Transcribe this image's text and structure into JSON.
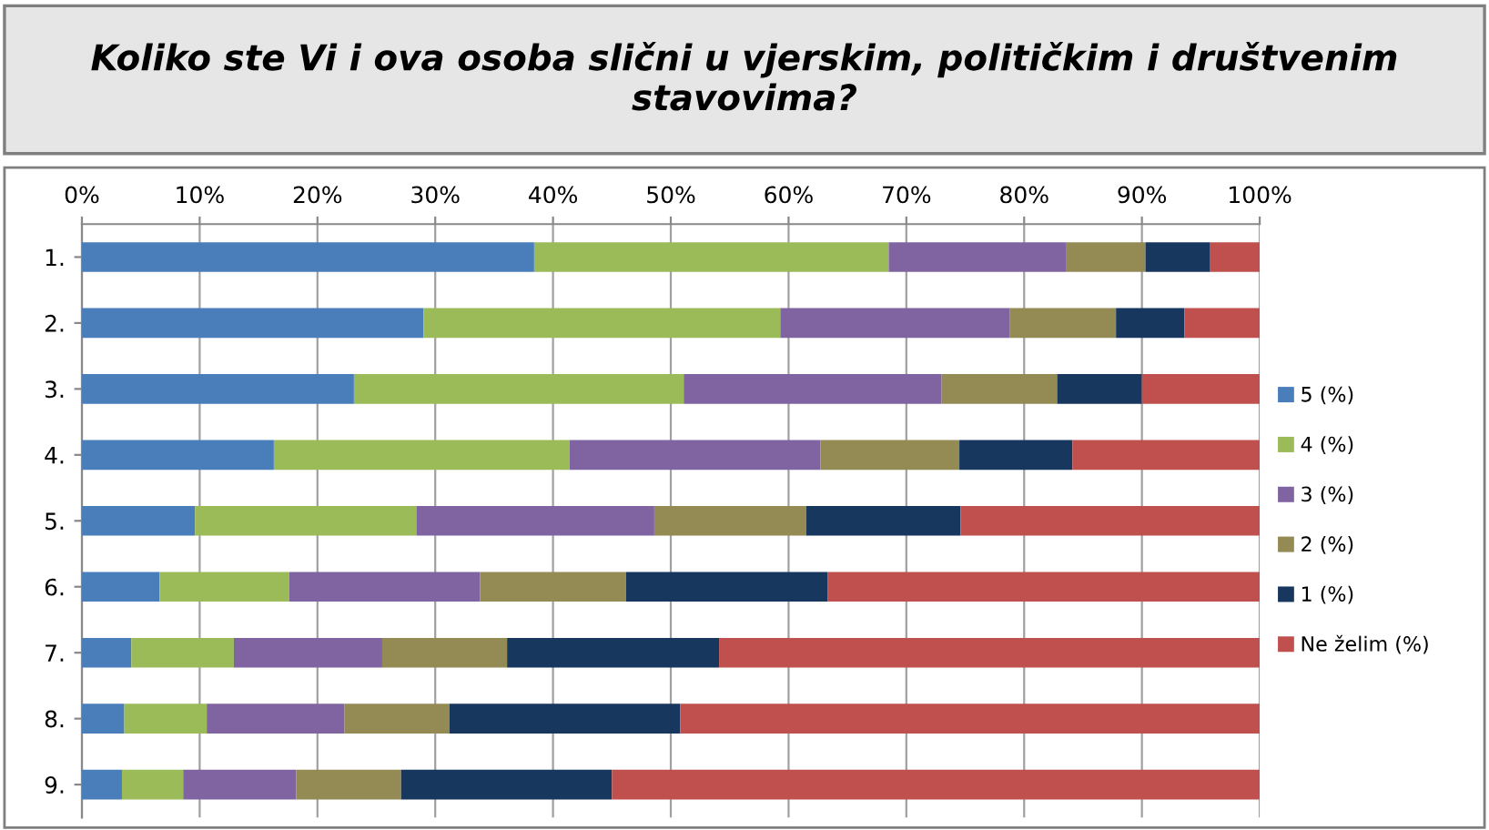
{
  "chart_data": {
    "type": "bar",
    "orientation": "horizontal",
    "stacked": true,
    "title": "Koliko ste Vi i ova osoba slični u vjerskim, političkim i društvenim stavovima?",
    "categories": [
      "1.",
      "2.",
      "3.",
      "4.",
      "5.",
      "6.",
      "7.",
      "8.",
      "9."
    ],
    "series": [
      {
        "name": "5 (%)",
        "color": "#4a7ebb",
        "values": [
          38.4,
          29.0,
          23.1,
          16.3,
          9.6,
          6.6,
          4.2,
          3.6,
          3.4
        ]
      },
      {
        "name": "4 (%)",
        "color": "#9bbb59",
        "values": [
          30.1,
          30.3,
          28.0,
          25.1,
          18.8,
          11.0,
          8.7,
          7.0,
          5.2
        ]
      },
      {
        "name": "3 (%)",
        "color": "#8064a2",
        "values": [
          15.1,
          19.5,
          21.9,
          21.3,
          20.2,
          16.2,
          12.6,
          11.7,
          9.6
        ]
      },
      {
        "name": "2 (%)",
        "color": "#948a54",
        "values": [
          6.7,
          9.0,
          9.8,
          11.8,
          12.9,
          12.4,
          10.6,
          8.9,
          8.9
        ]
      },
      {
        "name": "1 (%)",
        "color": "#17375e",
        "values": [
          5.5,
          5.8,
          7.2,
          9.6,
          13.1,
          17.1,
          18.0,
          19.6,
          17.9
        ]
      },
      {
        "name": "Ne želim (%)",
        "color": "#c0504d",
        "values": [
          4.2,
          6.4,
          10.0,
          15.9,
          25.4,
          36.7,
          45.9,
          49.2,
          55.0
        ]
      }
    ],
    "xlim": [
      0,
      100
    ],
    "xticks": [
      {
        "value": 0,
        "label": "0%"
      },
      {
        "value": 10,
        "label": "10%"
      },
      {
        "value": 20,
        "label": "20%"
      },
      {
        "value": 30,
        "label": "30%"
      },
      {
        "value": 40,
        "label": "40%"
      },
      {
        "value": 50,
        "label": "50%"
      },
      {
        "value": 60,
        "label": "60%"
      },
      {
        "value": 70,
        "label": "70%"
      },
      {
        "value": 80,
        "label": "80%"
      },
      {
        "value": 90,
        "label": "90%"
      },
      {
        "value": 100,
        "label": "100%"
      }
    ],
    "grid": "x",
    "legend": "right"
  }
}
